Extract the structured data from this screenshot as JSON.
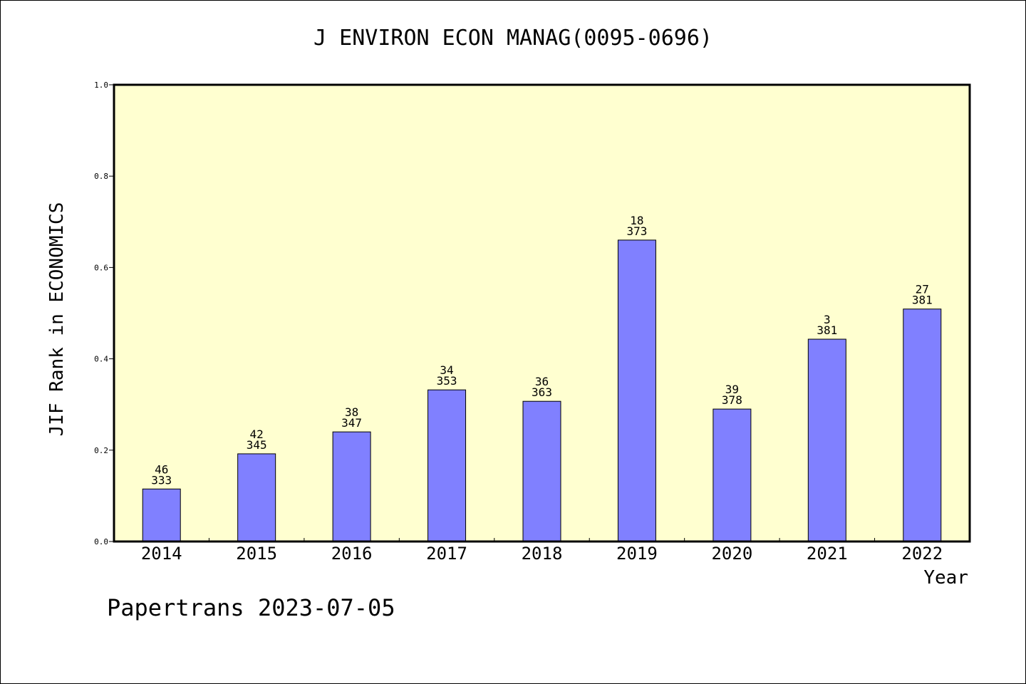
{
  "chart_data": {
    "type": "bar",
    "title": "J ENVIRON ECON MANAG(0095-0696)",
    "xlabel": "Year",
    "ylabel": "JIF Rank in ECONOMICS",
    "categories": [
      "2014",
      "2015",
      "2016",
      "2017",
      "2018",
      "2019",
      "2020",
      "2021",
      "2022"
    ],
    "values": [
      0.115,
      0.192,
      0.24,
      0.332,
      0.307,
      0.66,
      0.29,
      0.443,
      0.509
    ],
    "rank_labels": [
      "46",
      "42",
      "38",
      "34",
      "36",
      "18",
      "39",
      "3",
      "27"
    ],
    "total_labels": [
      "333",
      "345",
      "347",
      "353",
      "363",
      "373",
      "378",
      "381",
      "381"
    ],
    "ylim": [
      0,
      1.0
    ],
    "yticks": [
      "0.0",
      "0.2",
      "0.4",
      "0.6",
      "0.8",
      "1.0"
    ],
    "grid": false,
    "legend": "none",
    "colors": {
      "plot_background": "#ffffd0",
      "bar_fill": "#8080ff",
      "bar_stroke": "#000000"
    }
  },
  "footer": "Papertrans 2023-07-05"
}
